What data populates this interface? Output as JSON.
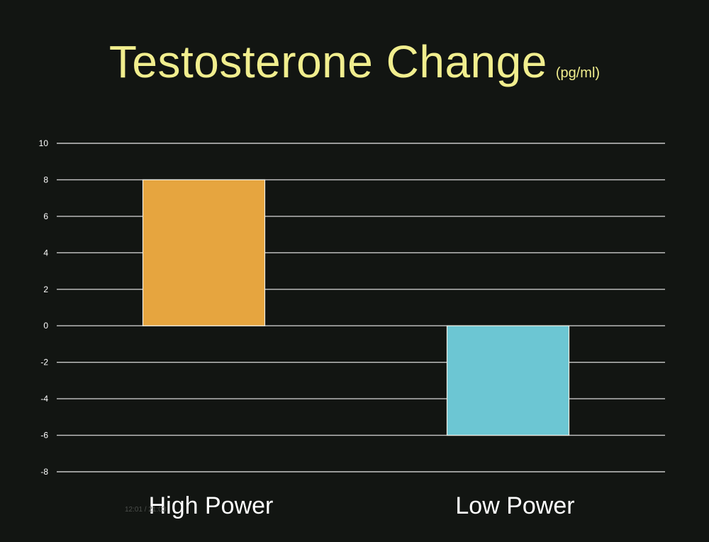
{
  "slide": {
    "title": "Testosterone Change",
    "title_unit": "(pg/ml)",
    "timestamp": "12:01 / 21:03"
  },
  "colors": {
    "background": "#121512",
    "title": "#f1ee8e",
    "gridline": "#c8c8c8",
    "axis_text": "#ffffff"
  },
  "chart_data": {
    "type": "bar",
    "title": "Testosterone Change (pg/ml)",
    "categories": [
      "High Power",
      "Low Power"
    ],
    "values": [
      8,
      -6
    ],
    "bar_colors": [
      "#e6a53f",
      "#6cc6d3"
    ],
    "xlabel": "",
    "ylabel": "",
    "ylim": [
      -8,
      10
    ],
    "yticks": [
      10,
      8,
      6,
      4,
      2,
      0,
      -2,
      -4,
      -6,
      -8
    ],
    "ytick_labels": [
      "10",
      "8",
      "6",
      "4",
      "2",
      "0",
      "-2",
      "-4",
      "-6",
      "-8"
    ],
    "grid": true,
    "legend": "none"
  }
}
